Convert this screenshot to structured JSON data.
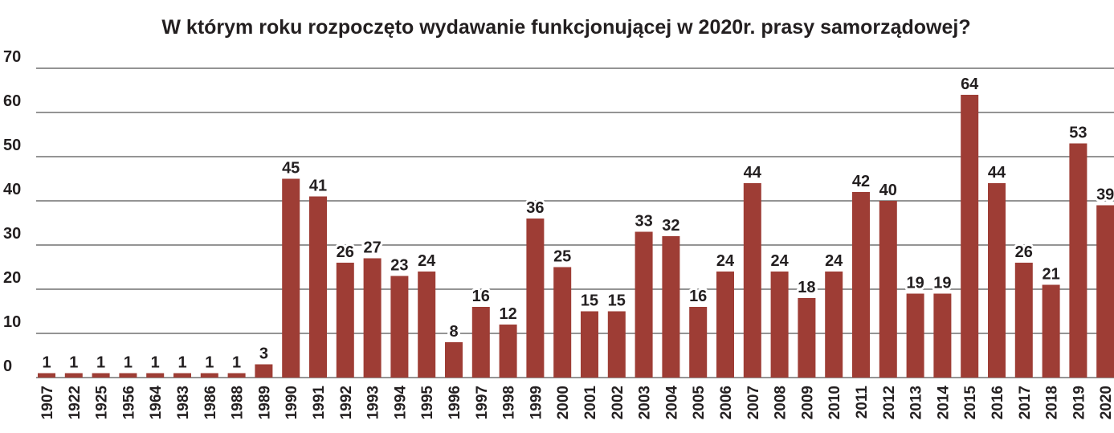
{
  "chart_data": {
    "type": "bar",
    "title": "W którym roku rozpoczęto wydawanie funkcjonującej w 2020r. prasy samorządowej?",
    "categories": [
      "1907",
      "1922",
      "1925",
      "1956",
      "1964",
      "1983",
      "1986",
      "1988",
      "1989",
      "1990",
      "1991",
      "1992",
      "1993",
      "1994",
      "1995",
      "1996",
      "1997",
      "1998",
      "1999",
      "2000",
      "2001",
      "2002",
      "2003",
      "2004",
      "2005",
      "2006",
      "2007",
      "2008",
      "2009",
      "2010",
      "2011",
      "2012",
      "2013",
      "2014",
      "2015",
      "2016",
      "2017",
      "2018",
      "2019",
      "2020"
    ],
    "values": [
      1,
      1,
      1,
      1,
      1,
      1,
      1,
      1,
      3,
      45,
      41,
      26,
      27,
      23,
      24,
      8,
      16,
      12,
      36,
      25,
      15,
      15,
      33,
      32,
      16,
      24,
      44,
      24,
      18,
      24,
      42,
      40,
      19,
      19,
      64,
      44,
      26,
      21,
      53,
      39
    ],
    "color": "#9e3d35",
    "ylim": [
      0,
      70
    ],
    "yticks": [
      0,
      10,
      20,
      30,
      40,
      50,
      60,
      70
    ],
    "grid": true
  }
}
